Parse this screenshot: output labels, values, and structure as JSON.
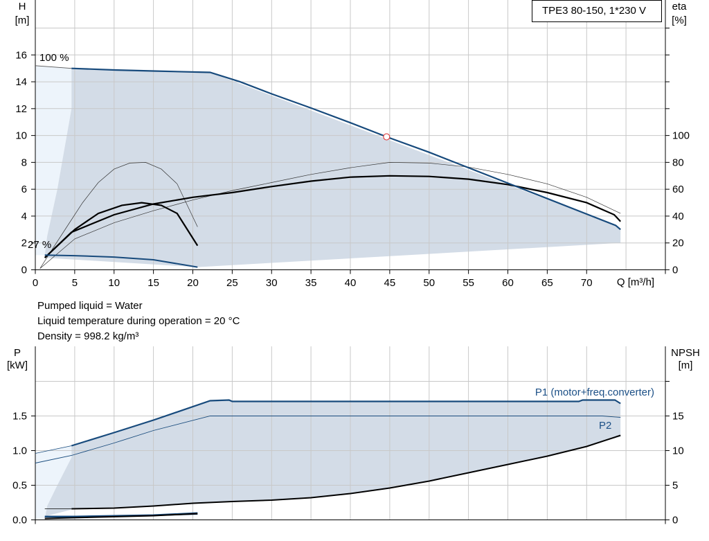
{
  "chart_data": [
    {
      "type": "line",
      "title": "TPE3 80-150, 1*230 V",
      "xlabel": "Q [m³/h]",
      "ylabel_left": [
        "H",
        "[m]"
      ],
      "ylabel_right": [
        "eta",
        "[%]"
      ],
      "xlim": [
        0,
        80
      ],
      "ylim_left": [
        0,
        18
      ],
      "ylim_right": [
        0,
        180
      ],
      "x_ticks": [
        0,
        5,
        10,
        15,
        20,
        25,
        30,
        35,
        40,
        45,
        50,
        55,
        60,
        65,
        70
      ],
      "y_ticks_left": [
        0,
        2,
        4,
        6,
        8,
        10,
        12,
        14,
        16
      ],
      "y_ticks_right": [
        0,
        20,
        40,
        60,
        80,
        100
      ],
      "grid": true,
      "annotations": [
        "100 %",
        "27 %"
      ],
      "duty_point": {
        "x": 44.6,
        "y": 9.9
      },
      "range_envelope": [
        [
          0,
          15.2
        ],
        [
          4.6,
          15.0
        ],
        [
          22.2,
          14.7
        ],
        [
          73.7,
          3.3
        ],
        [
          74.3,
          3.0
        ],
        [
          74.3,
          2.0
        ],
        [
          20.6,
          0.2
        ],
        [
          1.2,
          0.9
        ],
        [
          1.2,
          1.1
        ],
        [
          0,
          1.1
        ]
      ],
      "series": [
        {
          "role": "head-max",
          "values": [
            [
              4.6,
              15.0
            ],
            [
              10,
              14.88
            ],
            [
              15,
              14.8
            ],
            [
              22.2,
              14.7
            ],
            [
              26,
              14.0
            ],
            [
              30,
              13.1
            ],
            [
              35,
              12.05
            ],
            [
              40,
              10.95
            ],
            [
              44.6,
              9.9
            ],
            [
              50,
              8.75
            ],
            [
              55,
              7.6
            ],
            [
              60,
              6.45
            ],
            [
              65,
              5.3
            ],
            [
              70,
              4.15
            ],
            [
              73.7,
              3.3
            ],
            [
              74.3,
              3.0
            ]
          ]
        },
        {
          "role": "head-min",
          "values": [
            [
              1.2,
              1.1
            ],
            [
              5,
              1.05
            ],
            [
              10,
              0.95
            ],
            [
              15,
              0.75
            ],
            [
              20.6,
              0.2
            ]
          ]
        },
        {
          "role": "eta-max",
          "values": [
            [
              1.2,
              9
            ],
            [
              4.6,
              28
            ],
            [
              10,
              41
            ],
            [
              15,
              49
            ],
            [
              20,
              54
            ],
            [
              25,
              57.5
            ],
            [
              30,
              62
            ],
            [
              35,
              66
            ],
            [
              40,
              69
            ],
            [
              45,
              70
            ],
            [
              50,
              69.5
            ],
            [
              55,
              67.5
            ],
            [
              60,
              63.5
            ],
            [
              65,
              57.5
            ],
            [
              70,
              50
            ],
            [
              73.5,
              41
            ],
            [
              74.3,
              36
            ]
          ]
        },
        {
          "role": "eta-min",
          "values": [
            [
              1.2,
              9
            ],
            [
              5,
              30
            ],
            [
              8,
              42
            ],
            [
              11,
              48
            ],
            [
              13.5,
              50
            ],
            [
              16,
              48
            ],
            [
              18,
              42
            ],
            [
              20.6,
              18
            ]
          ]
        },
        {
          "role": "eta-max-thin",
          "values": [
            [
              0.6,
              1
            ],
            [
              2,
              8
            ],
            [
              5,
              23
            ],
            [
              10,
              35
            ],
            [
              15,
              44
            ],
            [
              20,
              52
            ],
            [
              25,
              59
            ],
            [
              30,
              65
            ],
            [
              35,
              71
            ],
            [
              40,
              76
            ],
            [
              45,
              80
            ],
            [
              50,
              79.5
            ],
            [
              55,
              76.5
            ],
            [
              60,
              71
            ],
            [
              65,
              64
            ],
            [
              70,
              54
            ],
            [
              74.3,
              42
            ]
          ]
        },
        {
          "role": "eta-min-thin",
          "values": [
            [
              0.6,
              1
            ],
            [
              2,
              14
            ],
            [
              4,
              32
            ],
            [
              6,
              50
            ],
            [
              8,
              65
            ],
            [
              10,
              75
            ],
            [
              12,
              79.5
            ],
            [
              14,
              80
            ],
            [
              16,
              75
            ],
            [
              18,
              64
            ],
            [
              20.6,
              32
            ]
          ]
        }
      ]
    },
    {
      "type": "line",
      "ylabel_left": [
        "P",
        "[kW]"
      ],
      "ylabel_right": [
        "NPSH",
        "[m]"
      ],
      "xlim": [
        0,
        80
      ],
      "ylim_left": [
        0,
        2.0
      ],
      "ylim_right": [
        0,
        20
      ],
      "y_ticks_left": [
        0.0,
        0.5,
        1.0,
        1.5
      ],
      "y_ticks_left_labels": [
        "0.0",
        "0.5",
        "1.0",
        "1.5"
      ],
      "y_ticks_right": [
        0,
        5,
        10,
        15
      ],
      "grid": true,
      "power_envelope": [
        [
          0,
          0.16
        ],
        [
          4.6,
          1.07
        ],
        [
          22.2,
          1.72
        ],
        [
          73.6,
          1.72
        ],
        [
          74.3,
          1.68
        ],
        [
          74.3,
          1.2
        ],
        [
          70,
          1.07
        ],
        [
          65,
          0.93
        ],
        [
          60,
          0.8
        ],
        [
          55,
          0.68
        ],
        [
          50,
          0.56
        ],
        [
          45,
          0.46
        ],
        [
          40,
          0.38
        ],
        [
          35,
          0.33
        ],
        [
          30,
          0.29
        ],
        [
          25,
          0.26
        ],
        [
          20,
          0.23
        ],
        [
          15,
          0.2
        ],
        [
          10,
          0.18
        ],
        [
          5,
          0.16
        ],
        [
          1.2,
          0.05
        ],
        [
          1.2,
          0.01
        ],
        [
          0,
          0.01
        ]
      ],
      "series": [
        {
          "name": "P1 (motor+freq.converter)",
          "values": [
            [
              4.6,
              1.07
            ],
            [
              10,
              1.26
            ],
            [
              15,
              1.44
            ],
            [
              22.2,
              1.72
            ],
            [
              24.6,
              1.73
            ],
            [
              25,
              1.71
            ],
            [
              30,
              1.71
            ],
            [
              40,
              1.71
            ],
            [
              50,
              1.71
            ],
            [
              60,
              1.71
            ],
            [
              69,
              1.71
            ],
            [
              69.5,
              1.73
            ],
            [
              73.6,
              1.73
            ],
            [
              74.3,
              1.68
            ]
          ]
        },
        {
          "name": "P2",
          "values": [
            [
              0,
              0.82
            ],
            [
              4.6,
              0.93
            ],
            [
              10,
              1.11
            ],
            [
              15,
              1.29
            ],
            [
              22.2,
              1.5
            ],
            [
              30,
              1.5
            ],
            [
              40,
              1.5
            ],
            [
              50,
              1.5
            ],
            [
              60,
              1.5
            ],
            [
              67,
              1.5
            ],
            [
              72,
              1.5
            ],
            [
              74.3,
              1.48
            ]
          ]
        },
        {
          "role": "p1-min-speed",
          "values": [
            [
              1.2,
              0.05
            ],
            [
              5,
              0.05
            ],
            [
              10,
              0.06
            ],
            [
              15,
              0.07
            ],
            [
              20.6,
              0.1
            ]
          ]
        },
        {
          "role": "p2-min-speed",
          "values": [
            [
              1.2,
              0.04
            ],
            [
              5,
              0.04
            ],
            [
              10,
              0.05
            ],
            [
              15,
              0.06
            ],
            [
              20.6,
              0.08
            ]
          ]
        },
        {
          "role": "npsh",
          "values": [
            [
              4.6,
              1.6
            ],
            [
              10,
              1.7
            ],
            [
              15,
              2.0
            ],
            [
              20,
              2.4
            ],
            [
              25,
              2.65
            ],
            [
              30,
              2.85
            ],
            [
              35,
              3.2
            ],
            [
              40,
              3.8
            ],
            [
              45,
              4.6
            ],
            [
              50,
              5.6
            ],
            [
              55,
              6.8
            ],
            [
              60,
              8.0
            ],
            [
              65,
              9.2
            ],
            [
              70,
              10.6
            ],
            [
              74.3,
              12.2
            ]
          ]
        }
      ]
    }
  ],
  "conditions": {
    "line1": "Pumped liquid = Water",
    "line2": "Liquid temperature during operation = 20 °C",
    "line3": "Density = 998.2 kg/m³"
  },
  "colors": {
    "curve_blue": "#174a7c",
    "label_blue": "#1b4f86",
    "area_fill": "#d3dce7",
    "area_light": "#edf4fb",
    "grid": "#c8c8c8",
    "axis": "#000000",
    "duty_point": "#e04040"
  }
}
